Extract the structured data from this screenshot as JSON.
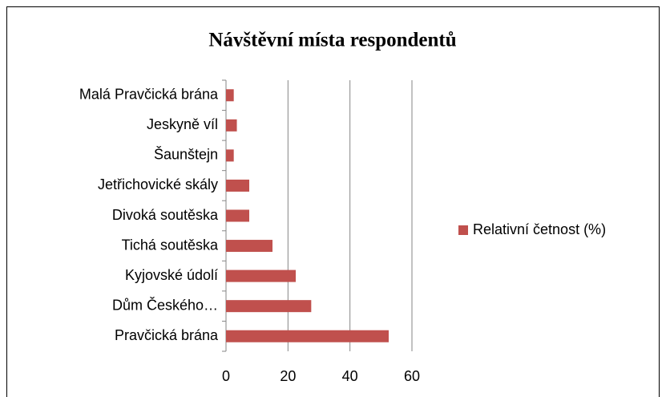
{
  "chart_data": {
    "type": "hbar",
    "title": "Návštěvní místa respondentů",
    "categories": [
      "Malá Pravčická brána",
      "Jeskyně víl",
      "Šaunštejn",
      "Jetřichovické skály",
      "Divoká soutěska",
      "Tichá soutěska",
      "Kyjovské údolí",
      "Dům Českého…",
      "Pravčická brána"
    ],
    "series": [
      {
        "name": "Relativní četnost (%)",
        "color": "#c0504d",
        "values": [
          2.5,
          3.5,
          2.5,
          7.5,
          7.5,
          15,
          22.5,
          27.5,
          52.5
        ]
      }
    ],
    "xlim": [
      0,
      60
    ],
    "xticks": [
      0,
      20,
      40,
      60
    ],
    "grid": true,
    "legend": "right"
  }
}
